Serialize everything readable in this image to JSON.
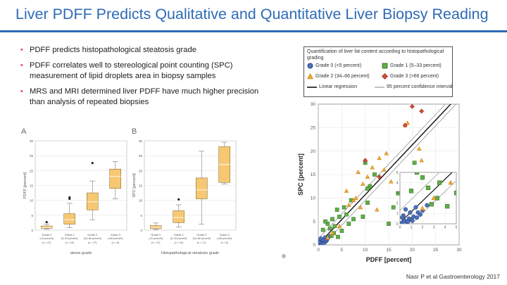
{
  "slide": {
    "title": "Liver PDFF Predicts Qualitative and Quantitative Liver Biopsy Reading",
    "citation": "Nasr P et al Gastroenterology 2017"
  },
  "bullets": [
    "PDFF predicts histopathological steatosis grade",
    "PDFF correlates well to stereological point counting (SPC) measurement of lipid droplets area in biopsy samples",
    "MRS and MRI determined liver PDFF have much higher precision than analysis of repeated biopsies"
  ],
  "colors": {
    "title": "#2e6bb6",
    "bullet": "#e0445a",
    "box": "#f7c873",
    "g0": "#4d6fb8",
    "g1": "#5fae47",
    "g2": "#f2a62b",
    "g3": "#d94a3a"
  },
  "chart_data": [
    {
      "type": "box",
      "panel": "A",
      "ylabel": "PDFF [percent]",
      "xlabel": "atosis grade",
      "ylim": [
        0,
        30
      ],
      "yticks": [
        0,
        5,
        10,
        15,
        20,
        25,
        30
      ],
      "categories": [
        {
          "name": "Grade 0",
          "range": "(<5 percent)",
          "n": "(n = 47)",
          "min": 0.3,
          "q1": 0.6,
          "median": 0.9,
          "q3": 1.4,
          "max": 2.0,
          "outliers": [
            2.7
          ]
        },
        {
          "name": "Grade 1",
          "range": "(5–33 percent)",
          "n": "(n = 24)",
          "min": 0.8,
          "q1": 2.0,
          "median": 3.5,
          "q3": 5.5,
          "max": 9.0,
          "outliers": [
            10.5,
            11.0
          ]
        },
        {
          "name": "Grade 2",
          "range": "(34–66 percent)",
          "n": "(n = 17)",
          "min": 3.5,
          "q1": 6.8,
          "median": 9.5,
          "q3": 12.5,
          "max": 16.5,
          "outliers": [
            22.5
          ]
        },
        {
          "name": "Grade 3",
          "range": "(>66 percent)",
          "n": "(n = 8)",
          "min": 10.5,
          "q1": 14.0,
          "median": 18.0,
          "q3": 20.5,
          "max": 23.0,
          "outliers": []
        }
      ]
    },
    {
      "type": "box",
      "panel": "B",
      "ylabel": "SPC [percent]",
      "xlabel": "Histopathological steatosis grade",
      "ylim": [
        0,
        30
      ],
      "yticks": [
        0,
        5,
        10,
        15,
        20,
        25,
        30
      ],
      "categories": [
        {
          "name": "Grade 0",
          "range": "(<5 percent)",
          "n": "(n = 47)",
          "min": 0.2,
          "q1": 0.5,
          "median": 0.9,
          "q3": 1.5,
          "max": 2.4,
          "outliers": []
        },
        {
          "name": "Grade 1",
          "range": "(5–33 percent)",
          "n": "(n = 24)",
          "min": 1.0,
          "q1": 2.5,
          "median": 4.2,
          "q3": 6.5,
          "max": 8.5,
          "outliers": [
            10.3
          ]
        },
        {
          "name": "Grade 2",
          "range": "(34–66 percent)",
          "n": "(n = 17)",
          "min": 2.0,
          "q1": 10.5,
          "median": 13.5,
          "q3": 17.5,
          "max": 26.5,
          "outliers": []
        },
        {
          "name": "Grade 3",
          "range": "(>66 percent)",
          "n": "(n = 8)",
          "min": 15.5,
          "q1": 16.0,
          "median": 22.0,
          "q3": 28.0,
          "max": 29.5,
          "outliers": []
        }
      ]
    },
    {
      "type": "scatter",
      "legend_title": "Quantification of liver fat content according to histopathological grading",
      "legend": {
        "g0": "Grade 0 (<5 percent)",
        "g1": "Grade 1 (5–33 percent)",
        "g2": "Grade 2 (34–66 percent)",
        "g3": "Grade 3 (>66 percent)",
        "reg": "Linear regression",
        "ci": "95 percent confidence interval"
      },
      "xlabel": "PDFF [percent]",
      "ylabel": "SPC [percent]",
      "xlim": [
        0,
        30
      ],
      "ylim": [
        0,
        30
      ],
      "xticks": [
        0,
        5,
        10,
        15,
        20,
        25,
        30
      ],
      "yticks": [
        0,
        5,
        10,
        15,
        20,
        25,
        30
      ],
      "regression": {
        "slope": 1.06,
        "intercept": 0.1,
        "ci_offset": 1.2
      },
      "series": [
        {
          "name": "Grade 0",
          "points": [
            [
              0.2,
              0.1
            ],
            [
              0.4,
              0.3
            ],
            [
              0.6,
              0.2
            ],
            [
              0.8,
              0.5
            ],
            [
              1.0,
              0.4
            ],
            [
              1.2,
              0.7
            ],
            [
              1.5,
              0.6
            ],
            [
              0.3,
              0.8
            ],
            [
              0.9,
              1.1
            ],
            [
              1.8,
              0.9
            ],
            [
              0.5,
              1.4
            ],
            [
              1.4,
              1.6
            ],
            [
              2.0,
              1.3
            ],
            [
              0.7,
              0.2
            ],
            [
              1.1,
              0.3
            ],
            [
              2.4,
              1.8
            ],
            [
              0.2,
              0.6
            ],
            [
              1.6,
              1.1
            ]
          ]
        },
        {
          "name": "Grade 1",
          "points": [
            [
              1.0,
              3.2
            ],
            [
              2.0,
              4.5
            ],
            [
              2.5,
              3.5
            ],
            [
              3.0,
              5.5
            ],
            [
              3.5,
              4.0
            ],
            [
              1.5,
              5.0
            ],
            [
              4.0,
              7.5
            ],
            [
              4.5,
              6.0
            ],
            [
              5.5,
              8.0
            ],
            [
              6.0,
              6.5
            ],
            [
              6.5,
              4.5
            ],
            [
              2.8,
              1.9
            ],
            [
              3.3,
              2.5
            ],
            [
              4.2,
              1.7
            ],
            [
              5.0,
              3.0
            ],
            [
              7.0,
              9.5
            ],
            [
              9.5,
              6.0
            ],
            [
              10.5,
              9.0
            ],
            [
              11.0,
              12.5
            ],
            [
              12.0,
              15.0
            ],
            [
              10.0,
              17.5
            ],
            [
              10.5,
              12.0
            ],
            [
              15.0,
              4.5
            ],
            [
              16.0,
              8.0
            ],
            [
              17.0,
              11.0
            ],
            [
              19.0,
              12.0
            ],
            [
              20.5,
              17.5
            ],
            [
              21.5,
              13.0
            ],
            [
              22.0,
              10.0
            ],
            [
              25.0,
              15.0
            ],
            [
              27.0,
              12.0
            ],
            [
              28.5,
              11.0
            ],
            [
              28.0,
              9.0
            ],
            [
              7.5,
              5.5
            ]
          ]
        },
        {
          "name": "Grade 2",
          "points": [
            [
              2.0,
              1.5
            ],
            [
              3.0,
              2.5
            ],
            [
              4.5,
              4.0
            ],
            [
              6.0,
              11.5
            ],
            [
              6.5,
              8.5
            ],
            [
              7.5,
              9.5
            ],
            [
              8.0,
              10.0
            ],
            [
              9.0,
              8.0
            ],
            [
              9.5,
              13.0
            ],
            [
              10.5,
              14.5
            ],
            [
              11.5,
              16.5
            ],
            [
              13.0,
              18.5
            ],
            [
              14.0,
              16.0
            ],
            [
              14.5,
              19.5
            ],
            [
              15.5,
              13.5
            ],
            [
              18.5,
              25.5
            ],
            [
              19.0,
              26.0
            ],
            [
              21.5,
              20.5
            ],
            [
              22.0,
              18.0
            ],
            [
              8.5,
              15.5
            ],
            [
              12.5,
              7.5
            ]
          ]
        },
        {
          "name": "Grade 3",
          "points": [
            [
              10.0,
              18.0
            ],
            [
              13.0,
              14.5
            ],
            [
              18.5,
              25.5
            ],
            [
              20.0,
              29.5
            ],
            [
              22.0,
              28.5
            ]
          ]
        }
      ],
      "inset": {
        "xlim": [
          0,
          5
        ],
        "ylim": [
          0,
          5
        ],
        "ticks": [
          0,
          1,
          2,
          3,
          4,
          5
        ]
      }
    }
  ]
}
